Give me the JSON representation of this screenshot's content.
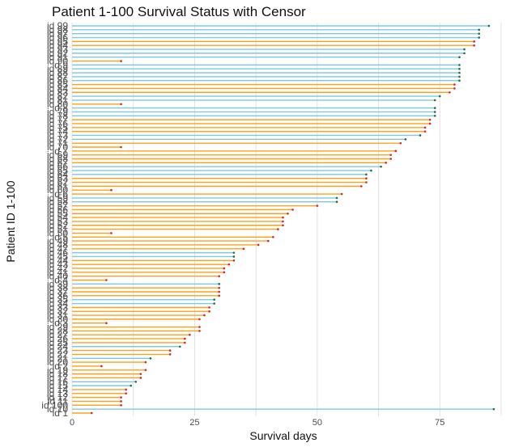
{
  "chart_data": {
    "type": "bar",
    "orientation": "horizontal",
    "style": "lollipop",
    "title": "Patient 1-100 Survival Status with Censor",
    "xlabel": "Survival days",
    "ylabel": "Patient ID 1-100",
    "xlim": [
      0,
      88
    ],
    "x_ticks": [
      0,
      25,
      50,
      75
    ],
    "grid": "vertical",
    "legend": "none",
    "colors": {
      "status_1": "#ff9f1c",
      "status_0": "#7ec8e3",
      "point_1": "#d62728",
      "point_0": "#1f6f4a"
    },
    "series": [
      {
        "id": "id 1",
        "value": 4,
        "status": 1
      },
      {
        "id": "id 10",
        "value": 86,
        "status": 0
      },
      {
        "id": "id 100",
        "value": 10,
        "status": 1
      },
      {
        "id": "id 11",
        "value": 10,
        "status": 1
      },
      {
        "id": "id 12",
        "value": 10,
        "status": 1
      },
      {
        "id": "id 13",
        "value": 11,
        "status": 1
      },
      {
        "id": "id 14",
        "value": 11,
        "status": 1
      },
      {
        "id": "id 15",
        "value": 12,
        "status": 0
      },
      {
        "id": "id 16",
        "value": 13,
        "status": 0
      },
      {
        "id": "id 17",
        "value": 14,
        "status": 1
      },
      {
        "id": "id 18",
        "value": 14,
        "status": 1
      },
      {
        "id": "id 19",
        "value": 15,
        "status": 1
      },
      {
        "id": "id 2",
        "value": 6,
        "status": 1
      },
      {
        "id": "id 20",
        "value": 15,
        "status": 1
      },
      {
        "id": "id 21",
        "value": 16,
        "status": 0
      },
      {
        "id": "id 22",
        "value": 20,
        "status": 1
      },
      {
        "id": "id 23",
        "value": 20,
        "status": 1
      },
      {
        "id": "id 24",
        "value": 22,
        "status": 0
      },
      {
        "id": "id 25",
        "value": 23,
        "status": 1
      },
      {
        "id": "id 26",
        "value": 23,
        "status": 1
      },
      {
        "id": "id 27",
        "value": 24,
        "status": 1
      },
      {
        "id": "id 28",
        "value": 26,
        "status": 1
      },
      {
        "id": "id 29",
        "value": 26,
        "status": 1
      },
      {
        "id": "id 3",
        "value": 7,
        "status": 1
      },
      {
        "id": "id 30",
        "value": 26,
        "status": 1
      },
      {
        "id": "id 31",
        "value": 27,
        "status": 1
      },
      {
        "id": "id 32",
        "value": 28,
        "status": 1
      },
      {
        "id": "id 33",
        "value": 28,
        "status": 1
      },
      {
        "id": "id 34",
        "value": 29,
        "status": 0
      },
      {
        "id": "id 35",
        "value": 29,
        "status": 0
      },
      {
        "id": "id 36",
        "value": 30,
        "status": 1
      },
      {
        "id": "id 37",
        "value": 30,
        "status": 1
      },
      {
        "id": "id 38",
        "value": 30,
        "status": 1
      },
      {
        "id": "id 39",
        "value": 30,
        "status": 0
      },
      {
        "id": "id 4",
        "value": 7,
        "status": 1
      },
      {
        "id": "id 40",
        "value": 30,
        "status": 1
      },
      {
        "id": "id 41",
        "value": 31,
        "status": 1
      },
      {
        "id": "id 42",
        "value": 31,
        "status": 1
      },
      {
        "id": "id 43",
        "value": 32,
        "status": 1
      },
      {
        "id": "id 44",
        "value": 33,
        "status": 1
      },
      {
        "id": "id 45",
        "value": 33,
        "status": 0
      },
      {
        "id": "id 46",
        "value": 33,
        "status": 0
      },
      {
        "id": "id 47",
        "value": 35,
        "status": 1
      },
      {
        "id": "id 48",
        "value": 38,
        "status": 1
      },
      {
        "id": "id 49",
        "value": 40,
        "status": 1
      },
      {
        "id": "id 5",
        "value": 41,
        "status": 1
      },
      {
        "id": "id 50",
        "value": 8,
        "status": 1
      },
      {
        "id": "id 51",
        "value": 42,
        "status": 1
      },
      {
        "id": "id 52",
        "value": 43,
        "status": 1
      },
      {
        "id": "id 53",
        "value": 43,
        "status": 1
      },
      {
        "id": "id 54",
        "value": 43,
        "status": 1
      },
      {
        "id": "id 55",
        "value": 44,
        "status": 1
      },
      {
        "id": "id 56",
        "value": 45,
        "status": 1
      },
      {
        "id": "id 57",
        "value": 50,
        "status": 1
      },
      {
        "id": "id 58",
        "value": 54,
        "status": 0
      },
      {
        "id": "id 59",
        "value": 54,
        "status": 0
      },
      {
        "id": "id 6",
        "value": 55,
        "status": 1
      },
      {
        "id": "id 60",
        "value": 8,
        "status": 1
      },
      {
        "id": "id 61",
        "value": 59,
        "status": 1
      },
      {
        "id": "id 62",
        "value": 60,
        "status": 1
      },
      {
        "id": "id 63",
        "value": 60,
        "status": 1
      },
      {
        "id": "id 64",
        "value": 60,
        "status": 0
      },
      {
        "id": "id 65",
        "value": 61,
        "status": 0
      },
      {
        "id": "id 66",
        "value": 63,
        "status": 0
      },
      {
        "id": "id 67",
        "value": 64,
        "status": 1
      },
      {
        "id": "id 68",
        "value": 65,
        "status": 1
      },
      {
        "id": "id 69",
        "value": 65,
        "status": 1
      },
      {
        "id": "id 7",
        "value": 66,
        "status": 1
      },
      {
        "id": "id 70",
        "value": 10,
        "status": 1
      },
      {
        "id": "id 71",
        "value": 67,
        "status": 1
      },
      {
        "id": "id 72",
        "value": 68,
        "status": 0
      },
      {
        "id": "id 73",
        "value": 71,
        "status": 0
      },
      {
        "id": "id 74",
        "value": 72,
        "status": 1
      },
      {
        "id": "id 75",
        "value": 72,
        "status": 1
      },
      {
        "id": "id 76",
        "value": 73,
        "status": 1
      },
      {
        "id": "id 77",
        "value": 73,
        "status": 1
      },
      {
        "id": "id 78",
        "value": 74,
        "status": 0
      },
      {
        "id": "id 79",
        "value": 74,
        "status": 0
      },
      {
        "id": "id 8",
        "value": 74,
        "status": 0
      },
      {
        "id": "id 80",
        "value": 10,
        "status": 1
      },
      {
        "id": "id 81",
        "value": 74,
        "status": 0
      },
      {
        "id": "id 82",
        "value": 75,
        "status": 0
      },
      {
        "id": "id 83",
        "value": 77,
        "status": 1
      },
      {
        "id": "id 84",
        "value": 78,
        "status": 1
      },
      {
        "id": "id 85",
        "value": 78,
        "status": 1
      },
      {
        "id": "id 86",
        "value": 79,
        "status": 0
      },
      {
        "id": "id 87",
        "value": 79,
        "status": 0
      },
      {
        "id": "id 88",
        "value": 79,
        "status": 0
      },
      {
        "id": "id 89",
        "value": 79,
        "status": 0
      },
      {
        "id": "id 9",
        "value": 79,
        "status": 0
      },
      {
        "id": "id 90",
        "value": 10,
        "status": 1
      },
      {
        "id": "id 91",
        "value": 79,
        "status": 0
      },
      {
        "id": "id 92",
        "value": 80,
        "status": 0
      },
      {
        "id": "id 93",
        "value": 80,
        "status": 0
      },
      {
        "id": "id 94",
        "value": 82,
        "status": 1
      },
      {
        "id": "id 95",
        "value": 82,
        "status": 1
      },
      {
        "id": "id 96",
        "value": 83,
        "status": 0
      },
      {
        "id": "id 97",
        "value": 83,
        "status": 0
      },
      {
        "id": "id 98",
        "value": 83,
        "status": 0
      },
      {
        "id": "id 99",
        "value": 85,
        "status": 0
      }
    ]
  }
}
